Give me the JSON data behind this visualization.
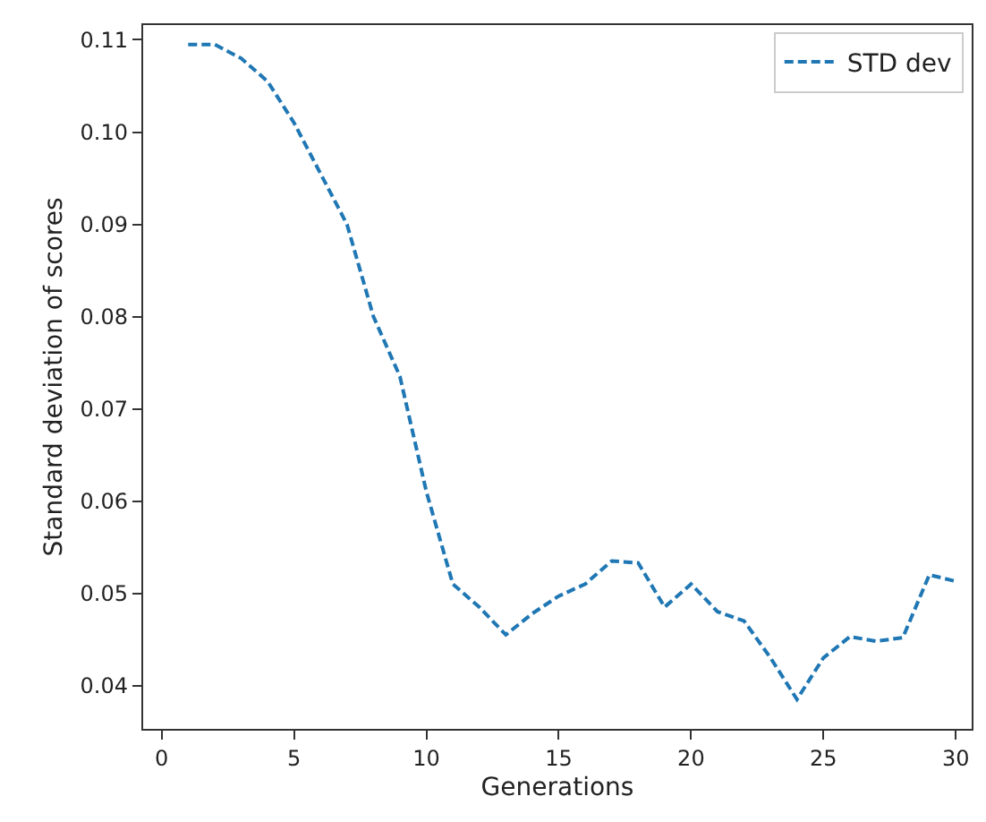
{
  "chart_data": {
    "type": "line",
    "xlabel": "Generations",
    "ylabel": "Standard deviation of scores",
    "x": [
      1,
      2,
      3,
      4,
      5,
      6,
      7,
      8,
      9,
      10,
      11,
      12,
      13,
      14,
      15,
      16,
      17,
      18,
      19,
      20,
      21,
      22,
      23,
      24,
      25,
      26,
      27,
      28,
      29,
      30
    ],
    "series": [
      {
        "name": "STD dev",
        "color": "#1f77b4",
        "values": [
          0.1095,
          0.1095,
          0.108,
          0.1055,
          0.101,
          0.0955,
          0.09,
          0.08,
          0.0735,
          0.061,
          0.051,
          0.0485,
          0.0455,
          0.0478,
          0.0497,
          0.051,
          0.0535,
          0.0533,
          0.0485,
          0.051,
          0.048,
          0.047,
          0.043,
          0.0385,
          0.043,
          0.0453,
          0.0448,
          0.0452,
          0.052,
          0.0513
        ]
      }
    ],
    "xlim": [
      -0.7,
      30.6
    ],
    "ylim": [
      0.0353,
      0.1116
    ],
    "xticks": [
      0,
      5,
      10,
      15,
      20,
      25,
      30
    ],
    "yticks": [
      0.04,
      0.05,
      0.06,
      0.07,
      0.08,
      0.09,
      {
        "value": 0.1,
        "label": "0.10"
      },
      0.11
    ],
    "line_style": "dashed",
    "legend": "top right",
    "grid": false
  }
}
